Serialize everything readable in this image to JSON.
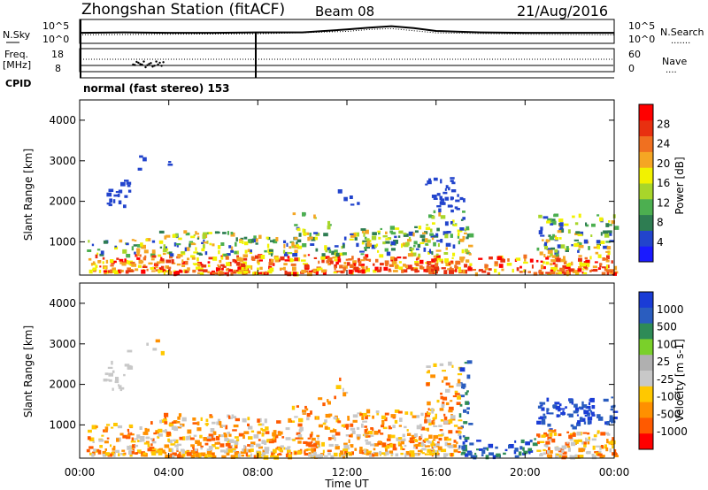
{
  "header": {
    "title": "Zhongshan Station (fitACF)",
    "beam": "Beam 08",
    "date": "21/Aug/2016"
  },
  "colors": {
    "power_scale": [
      "#1a1aff",
      "#2244cc",
      "#2e7d52",
      "#4caf50",
      "#a8d62a",
      "#f2f200",
      "#f5a623",
      "#f07020",
      "#e83010",
      "#ff0000"
    ],
    "velocity_scale": [
      "#ff0000",
      "#ff5a00",
      "#ff9000",
      "#ffc800",
      "#c8c8c8",
      "#b0b0b0",
      "#7ad02a",
      "#2e8b57",
      "#2a5dbf",
      "#1a3cd6"
    ],
    "frame": "#000000",
    "background": "#ffffff"
  },
  "chart_data": [
    {
      "type": "line",
      "panel": "noise",
      "labels": {
        "left": "N.Sky",
        "right": "N.Search",
        "right_suffix": "......."
      },
      "y_ticks_left": [
        "10^5",
        "10^0"
      ],
      "y_ticks_right": [
        "10^5",
        "10^0"
      ],
      "series": [
        {
          "name": "N.Sky",
          "style": "solid",
          "x": [
            0,
            2,
            4,
            6,
            8,
            10,
            12,
            13,
            14,
            15,
            16,
            18,
            20,
            22,
            24
          ],
          "y": [
            2.2,
            2.3,
            2.2,
            2.2,
            2.3,
            2.3,
            2.9,
            3.3,
            3.6,
            3.2,
            2.6,
            2.3,
            2.2,
            2.2,
            2.2
          ]
        },
        {
          "name": "N.Search",
          "style": "dotted",
          "x": [
            0,
            4,
            8,
            12,
            13,
            14,
            16,
            20,
            24
          ],
          "y": [
            1.8,
            1.9,
            2.0,
            2.5,
            2.9,
            3.1,
            2.2,
            1.9,
            1.8
          ]
        }
      ],
      "ylim": [
        0,
        5
      ]
    },
    {
      "type": "scatter",
      "panel": "frequency",
      "labels": {
        "left": "Freq.",
        "left_unit": "[MHz]",
        "right": "Nave",
        "right_suffix": "...."
      },
      "y_ticks_left": [
        "18",
        "8"
      ],
      "y_ticks_right": [
        "60",
        "0"
      ],
      "freq_mhz": 10.0,
      "nave_level": 28
    },
    {
      "type": "line",
      "panel": "cpid",
      "label": "CPID",
      "text": "normal (fast stereo) 153"
    },
    {
      "type": "heatmap",
      "panel": "power",
      "xlim": [
        0,
        24
      ],
      "ylim": [
        180,
        4500
      ],
      "y_ticks": [
        "1000",
        "2000",
        "3000",
        "4000"
      ],
      "ylabel": "Slant Range [km]",
      "colorbar_label": "Power [dB]",
      "colorbar_ticks": [
        "4",
        "8",
        "12",
        "16",
        "20",
        "24",
        "28"
      ],
      "range": [
        0,
        32
      ]
    },
    {
      "type": "heatmap",
      "panel": "velocity",
      "xlim": [
        0,
        24
      ],
      "ylim": [
        180,
        4500
      ],
      "y_ticks": [
        "1000",
        "2000",
        "3000",
        "4000"
      ],
      "ylabel": "Slant Range [km]",
      "xlabel": "Time UT",
      "x_ticks": [
        "00:00",
        "04:00",
        "08:00",
        "12:00",
        "16:00",
        "20:00",
        "00:00"
      ],
      "colorbar_label": "Velocity [m s-1]",
      "colorbar_ticks": [
        "1000",
        "500",
        "100",
        "25",
        "-25",
        "-100",
        "-500",
        "-1000"
      ]
    }
  ]
}
